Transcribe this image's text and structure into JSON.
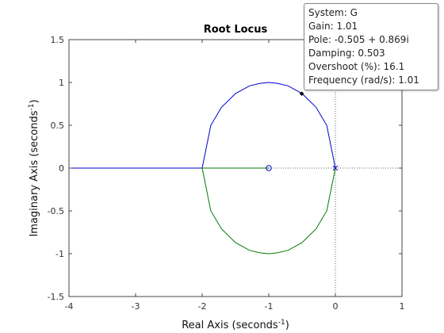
{
  "chart_data": {
    "type": "line",
    "title": "Root Locus",
    "xlabel": "Real Axis (seconds",
    "ylabel": "Imaginary Axis (seconds",
    "label_exponent": "-1",
    "xlim": [
      -4,
      1
    ],
    "ylim": [
      -1.5,
      1.5
    ],
    "xticks": [
      -4,
      -3,
      -2,
      -1,
      0,
      1
    ],
    "yticks": [
      -1.5,
      -1,
      -0.5,
      0,
      0.5,
      1,
      1.5
    ],
    "xtick_labels": [
      "-4",
      "-3",
      "-2",
      "-1",
      "0",
      "1"
    ],
    "ytick_labels": [
      "-1.5",
      "-1",
      "-0.5",
      "0",
      "0.5",
      "1",
      "1.5"
    ],
    "grid": false,
    "colors": {
      "branch1": "#0000cc",
      "branch2": "#007a00",
      "axes": "#444444",
      "zero_line": "#666666"
    },
    "series": [
      {
        "x": [
          0,
          -0.13,
          -0.29,
          -0.5,
          -0.71,
          -0.87,
          -1,
          -1.13,
          -1.29,
          -1.5,
          -1.71,
          -1.87,
          -2,
          -2.5,
          -3,
          -3.5,
          -4
        ],
        "y": [
          0,
          0.5,
          0.71,
          0.87,
          0.96,
          0.99,
          1,
          0.99,
          0.96,
          0.87,
          0.71,
          0.5,
          0,
          0,
          0,
          0,
          0
        ],
        "color": "#0000cc"
      },
      {
        "x": [
          0,
          -0.13,
          -0.29,
          -0.5,
          -0.71,
          -0.87,
          -1,
          -1.13,
          -1.29,
          -1.5,
          -1.71,
          -1.87,
          -2,
          -1.5,
          -1.2,
          -1
        ],
        "y": [
          0,
          -0.5,
          -0.71,
          -0.87,
          -0.96,
          -0.99,
          -1,
          -0.99,
          -0.96,
          -0.87,
          -0.71,
          -0.5,
          0,
          0,
          0,
          0
        ],
        "color": "#007a00"
      }
    ],
    "poles": [
      {
        "x": 0,
        "y": 0
      }
    ],
    "zeros": [
      {
        "x": -1,
        "y": 0
      }
    ],
    "selected_point": {
      "x": -0.505,
      "y": 0.869
    },
    "datatip": [
      "System: G",
      "Gain: 1.01",
      "Pole: -0.505 + 0.869i",
      "Damping: 0.503",
      "Overshoot (%): 16.1",
      "Frequency (rad/s): 1.01"
    ]
  }
}
